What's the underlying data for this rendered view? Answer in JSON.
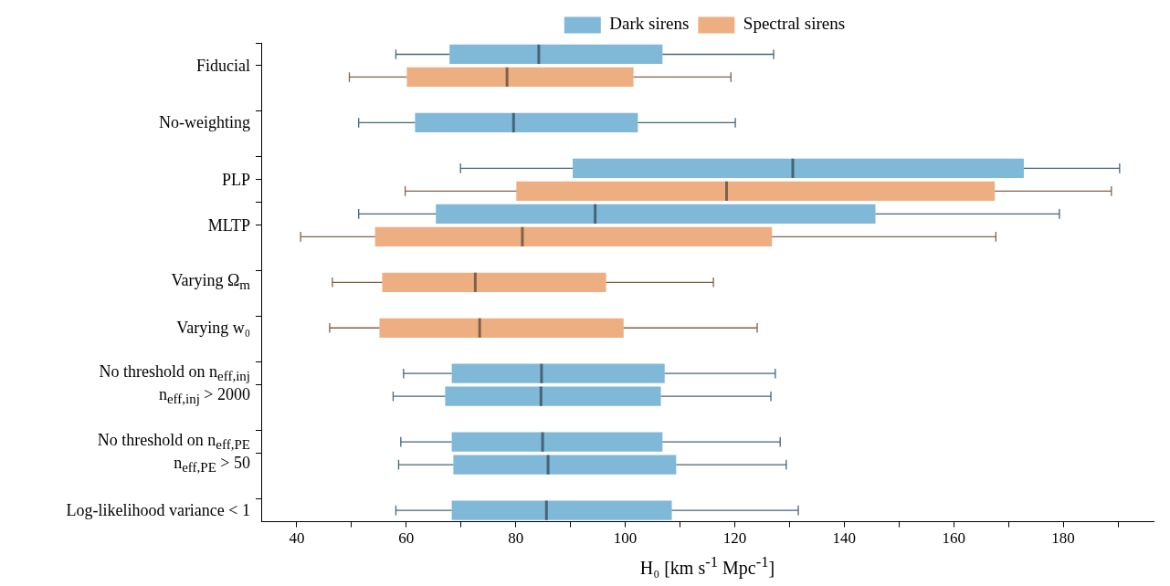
{
  "chart_data": {
    "type": "box",
    "orientation": "horizontal",
    "xlabel": "H₀ [km s$^{-1}$ Mpc$^{-1}$]",
    "categories": [
      "Fiducial",
      "No-weighting",
      "PLP",
      "MLTP",
      "Varying Ω$_{m}$",
      "Varying w₀",
      "No threshold on n$_{eff,inj}$",
      "n$_{eff,inj}$ > 2000",
      "No threshold on n$_{eff,PE}$",
      "n$_{eff,PE}$ > 50",
      "Log-likelihood variance < 1"
    ],
    "series": [
      {
        "name": "Dark sirens",
        "color": "#80b8d8",
        "boxes": [
          {
            "low": 58.1,
            "q1": 67.9,
            "median": 84.2,
            "q3": 106.8,
            "high": 127.1
          },
          {
            "low": 51.3,
            "q1": 61.6,
            "median": 79.6,
            "q3": 102.3,
            "high": 120.1
          },
          {
            "low": 69.9,
            "q1": 90.4,
            "median": 130.6,
            "q3": 172.8,
            "high": 190.3
          },
          {
            "low": 51.3,
            "q1": 65.4,
            "median": 94.5,
            "q3": 145.7,
            "high": 179.3
          },
          null,
          null,
          {
            "low": 59.5,
            "q1": 68.3,
            "median": 84.7,
            "q3": 107.2,
            "high": 127.4
          },
          {
            "low": 57.6,
            "q1": 67.1,
            "median": 84.6,
            "q3": 106.5,
            "high": 126.6
          },
          {
            "low": 59.0,
            "q1": 68.3,
            "median": 84.9,
            "q3": 106.8,
            "high": 128.3
          },
          {
            "low": 58.6,
            "q1": 68.6,
            "median": 85.9,
            "q3": 109.3,
            "high": 129.4
          },
          {
            "low": 58.1,
            "q1": 68.3,
            "median": 85.6,
            "q3": 108.5,
            "high": 131.6
          }
        ]
      },
      {
        "name": "Spectral sirens",
        "color": "#edae82",
        "boxes": [
          {
            "low": 49.6,
            "q1": 60.1,
            "median": 78.4,
            "q3": 101.5,
            "high": 119.3
          },
          null,
          {
            "low": 59.8,
            "q1": 80.1,
            "median": 118.5,
            "q3": 167.5,
            "high": 188.8
          },
          {
            "low": 40.7,
            "q1": 54.3,
            "median": 81.2,
            "q3": 126.8,
            "high": 167.7
          },
          {
            "low": 46.5,
            "q1": 55.6,
            "median": 72.6,
            "q3": 96.5,
            "high": 116.1
          },
          {
            "low": 46.0,
            "q1": 55.1,
            "median": 73.4,
            "q3": 99.7,
            "high": 124.1
          },
          null,
          null,
          null,
          null,
          null
        ]
      }
    ],
    "xlim": [
      33.5,
      196.5
    ],
    "xticks": [
      40,
      {
        "value": 50,
        "label": null
      },
      60,
      {
        "value": 70,
        "label": null
      },
      80,
      {
        "value": 90,
        "label": null
      },
      100,
      {
        "value": 110,
        "label": null
      },
      120,
      {
        "value": 130,
        "label": null
      },
      140,
      {
        "value": 150,
        "label": null
      },
      160,
      {
        "value": 170,
        "label": null
      },
      180,
      {
        "value": 190,
        "label": null
      }
    ],
    "legend": "top",
    "grid": false
  }
}
